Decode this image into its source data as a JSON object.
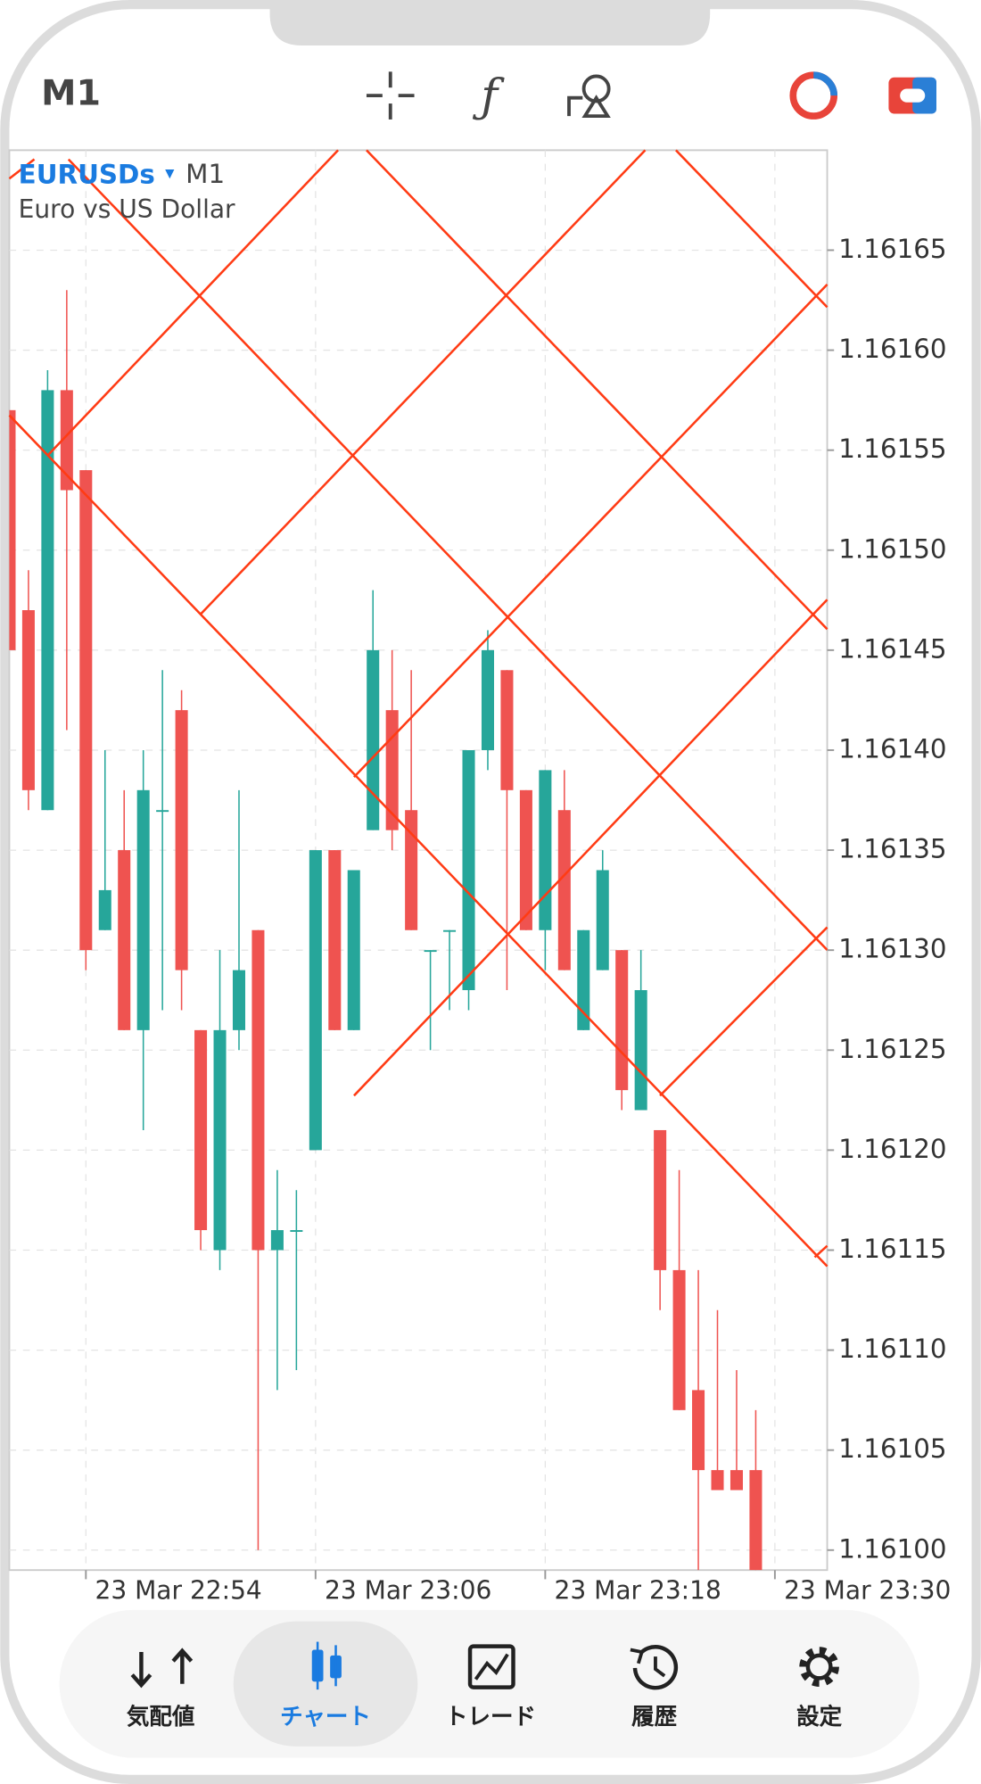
{
  "header": {
    "title": "M1"
  },
  "chart_data": {
    "type": "candlestick",
    "symbol": "EURUSDs",
    "timeframe": "M1",
    "subtitle": "Euro vs US Dollar",
    "x": [
      "23 Mar 22:50",
      "23 Mar 22:51",
      "23 Mar 22:52",
      "23 Mar 22:53",
      "23 Mar 22:54",
      "23 Mar 22:55",
      "23 Mar 22:56",
      "23 Mar 22:57",
      "23 Mar 22:58",
      "23 Mar 22:59",
      "23 Mar 23:00",
      "23 Mar 23:01",
      "23 Mar 23:02",
      "23 Mar 23:03",
      "23 Mar 23:04",
      "23 Mar 23:05",
      "23 Mar 23:06",
      "23 Mar 23:07",
      "23 Mar 23:08",
      "23 Mar 23:09",
      "23 Mar 23:10",
      "23 Mar 23:11",
      "23 Mar 23:12",
      "23 Mar 23:13",
      "23 Mar 23:14",
      "23 Mar 23:15",
      "23 Mar 23:16",
      "23 Mar 23:17",
      "23 Mar 23:18",
      "23 Mar 23:19",
      "23 Mar 23:20",
      "23 Mar 23:21",
      "23 Mar 23:22",
      "23 Mar 23:23",
      "23 Mar 23:24",
      "23 Mar 23:25",
      "23 Mar 23:26",
      "23 Mar 23:27",
      "23 Mar 23:28",
      "23 Mar 23:29"
    ],
    "open": [
      1.16157,
      1.16147,
      1.16137,
      1.16158,
      1.16154,
      1.16131,
      1.16135,
      1.16126,
      1.16137,
      1.16142,
      1.16126,
      1.16115,
      1.16126,
      1.16131,
      1.16115,
      1.16116,
      1.1612,
      1.16135,
      1.16126,
      1.16136,
      1.16142,
      1.16137,
      1.1613,
      1.16131,
      1.16128,
      1.1614,
      1.16144,
      1.16138,
      1.16131,
      1.16137,
      1.16126,
      1.16129,
      1.1613,
      1.16122,
      1.16121,
      1.16114,
      1.16108,
      1.16104,
      1.16104,
      1.16104
    ],
    "high": [
      1.16157,
      1.16149,
      1.16159,
      1.16163,
      1.16154,
      1.1614,
      1.16138,
      1.1614,
      1.16144,
      1.16143,
      1.16126,
      1.1613,
      1.16138,
      1.16131,
      1.16119,
      1.16118,
      1.16135,
      1.16135,
      1.16134,
      1.16148,
      1.16145,
      1.16144,
      1.1613,
      1.16131,
      1.1614,
      1.16146,
      1.16144,
      1.16138,
      1.16139,
      1.16139,
      1.16131,
      1.16135,
      1.1613,
      1.1613,
      1.16121,
      1.16119,
      1.16114,
      1.16112,
      1.16109,
      1.16107
    ],
    "low": [
      1.16145,
      1.16137,
      1.16137,
      1.16141,
      1.16129,
      1.16131,
      1.16126,
      1.16121,
      1.16127,
      1.16127,
      1.16115,
      1.16114,
      1.16125,
      1.161,
      1.16108,
      1.16109,
      1.1612,
      1.16126,
      1.16126,
      1.16136,
      1.16135,
      1.16131,
      1.16125,
      1.16127,
      1.16127,
      1.16139,
      1.16128,
      1.16131,
      1.16129,
      1.16129,
      1.16126,
      1.16129,
      1.16122,
      1.16122,
      1.16112,
      1.16107,
      1.16099,
      1.16103,
      1.16103,
      1.16099
    ],
    "close": [
      1.16145,
      1.16138,
      1.16158,
      1.16153,
      1.1613,
      1.16133,
      1.16126,
      1.16138,
      1.16137,
      1.16129,
      1.16116,
      1.16126,
      1.16129,
      1.16115,
      1.16116,
      1.16116,
      1.16135,
      1.16126,
      1.16134,
      1.16145,
      1.16136,
      1.16131,
      1.1613,
      1.16131,
      1.1614,
      1.16145,
      1.16138,
      1.16131,
      1.16139,
      1.16129,
      1.16131,
      1.16134,
      1.16123,
      1.16128,
      1.16114,
      1.16107,
      1.16104,
      1.16103,
      1.16103,
      1.16099
    ],
    "up_color": "#26a69a",
    "down_color": "#ef5350",
    "xlim": [
      "23 Mar 22:50",
      "23 Mar 23:32:44"
    ],
    "xticks": [
      "23 Mar 22:54",
      "23 Mar 23:06",
      "23 Mar 23:18",
      "23 Mar 23:30"
    ],
    "ylim": [
      1.16099,
      1.1617
    ],
    "yticks": [
      1.16165,
      {
        "value": 1.1616,
        "label": "1.16160"
      },
      1.16155,
      {
        "value": 1.1615,
        "label": "1.16150"
      },
      1.16145,
      {
        "value": 1.1614,
        "label": "1.16140"
      },
      1.16135,
      {
        "value": 1.1613,
        "label": "1.16130"
      },
      1.16125,
      {
        "value": 1.1612,
        "label": "1.16120"
      },
      1.16115,
      {
        "value": 1.1611,
        "label": "1.16110"
      },
      1.16105,
      {
        "value": 1.161,
        "label": "1.16100"
      }
    ],
    "grid": true
  },
  "nav": {
    "items": [
      "気配値",
      "チャート",
      "トレード",
      "履歴",
      "設定"
    ],
    "active": 1
  }
}
